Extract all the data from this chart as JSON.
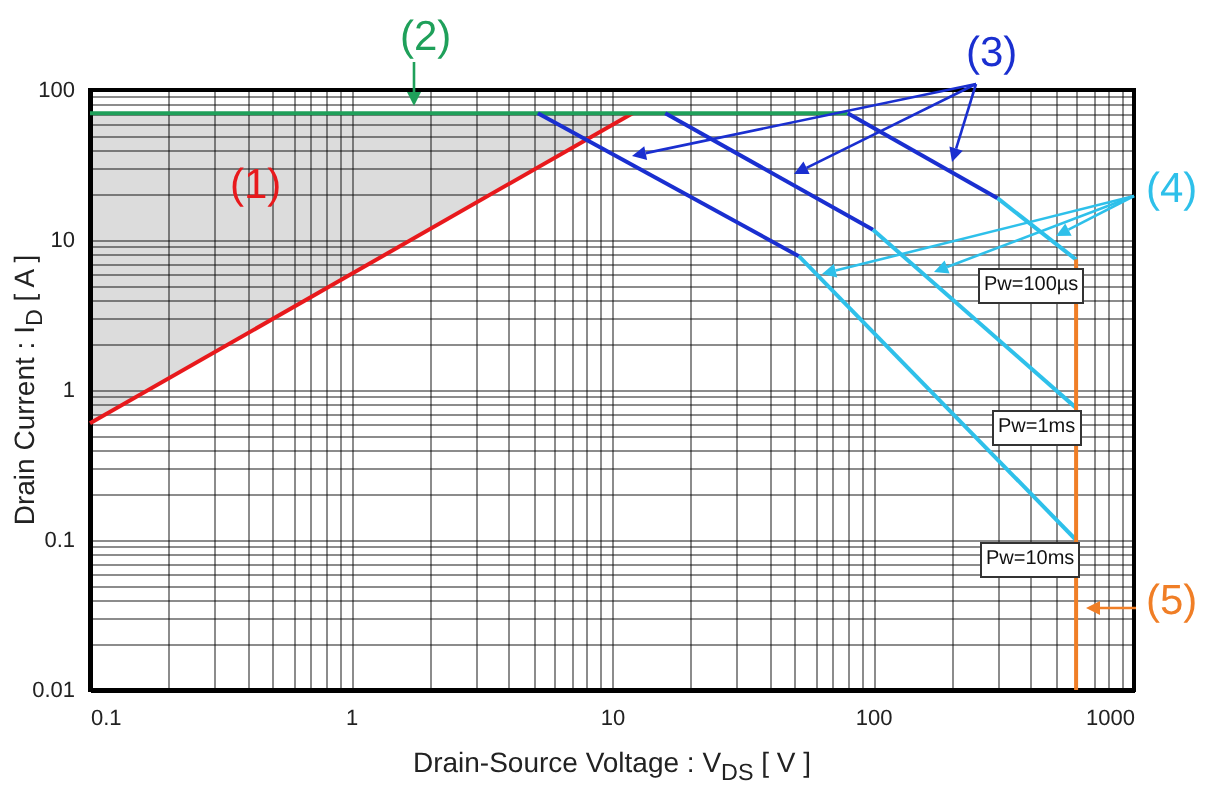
{
  "chart_data": {
    "type": "line",
    "xlabel": "Drain-Source  Voltage : V$_{DS}$ [ V ]",
    "ylabel": "Drain  Current : I$_{D}$ [ A ]",
    "log": "xy",
    "grid": true,
    "marker": "none",
    "line_style": "solid",
    "xlim": [
      0.1,
      1000
    ],
    "ylim": [
      0.01,
      100
    ],
    "xticks": [
      0.1,
      {
        "value": 0.2,
        "label": null
      },
      {
        "value": 0.3,
        "label": null
      },
      {
        "value": 0.4,
        "label": null
      },
      {
        "value": 0.5,
        "label": null
      },
      {
        "value": 0.6,
        "label": null
      },
      {
        "value": 0.7,
        "label": null
      },
      {
        "value": 0.8,
        "label": null
      },
      {
        "value": 0.9,
        "label": null
      },
      1,
      {
        "value": 2,
        "label": null
      },
      {
        "value": 3,
        "label": null
      },
      {
        "value": 4,
        "label": null
      },
      {
        "value": 5,
        "label": null
      },
      {
        "value": 6,
        "label": null
      },
      {
        "value": 7,
        "label": null
      },
      {
        "value": 8,
        "label": null
      },
      {
        "value": 9,
        "label": null
      },
      10,
      {
        "value": 20,
        "label": null
      },
      {
        "value": 30,
        "label": null
      },
      {
        "value": 40,
        "label": null
      },
      {
        "value": 50,
        "label": null
      },
      {
        "value": 60,
        "label": null
      },
      {
        "value": 70,
        "label": null
      },
      {
        "value": 80,
        "label": null
      },
      {
        "value": 90,
        "label": null
      },
      100,
      {
        "value": 200,
        "label": null
      },
      {
        "value": 300,
        "label": null
      },
      {
        "value": 400,
        "label": null
      },
      {
        "value": 500,
        "label": null
      },
      {
        "value": 600,
        "label": null
      },
      {
        "value": 700,
        "label": null
      },
      {
        "value": 800,
        "label": null
      },
      {
        "value": 900,
        "label": null
      },
      1000
    ],
    "yticks": [
      0.01,
      {
        "value": 0.02,
        "label": null
      },
      {
        "value": 0.03,
        "label": null
      },
      {
        "value": 0.04,
        "label": null
      },
      {
        "value": 0.05,
        "label": null
      },
      {
        "value": 0.06,
        "label": null
      },
      {
        "value": 0.07,
        "label": null
      },
      {
        "value": 0.08,
        "label": null
      },
      {
        "value": 0.09,
        "label": null
      },
      0.1,
      {
        "value": 0.2,
        "label": null
      },
      {
        "value": 0.3,
        "label": null
      },
      {
        "value": 0.4,
        "label": null
      },
      {
        "value": 0.5,
        "label": null
      },
      {
        "value": 0.6,
        "label": null
      },
      {
        "value": 0.7,
        "label": null
      },
      {
        "value": 0.8,
        "label": null
      },
      {
        "value": 0.9,
        "label": null
      },
      1,
      {
        "value": 2,
        "label": null
      },
      {
        "value": 3,
        "label": null
      },
      {
        "value": 4,
        "label": null
      },
      {
        "value": 5,
        "label": null
      },
      {
        "value": 6,
        "label": null
      },
      {
        "value": 7,
        "label": null
      },
      {
        "value": 8,
        "label": null
      },
      {
        "value": 9,
        "label": null
      },
      10,
      {
        "value": 20,
        "label": null
      },
      {
        "value": 30,
        "label": null
      },
      {
        "value": 40,
        "label": null
      },
      {
        "value": 50,
        "label": null
      },
      {
        "value": 60,
        "label": null
      },
      {
        "value": 70,
        "label": null
      },
      {
        "value": 80,
        "label": null
      },
      {
        "value": 90,
        "label": null
      },
      100
    ],
    "series": [
      {
        "color": "#e8191c",
        "x": [
          0.1,
          12
        ],
        "values": [
          0.6,
          70
        ]
      },
      {
        "color": "#1fa05a",
        "x": [
          0.1,
          80
        ],
        "values": [
          70,
          70
        ]
      },
      {
        "color": "#1a2fd0",
        "x": [
          5.2,
          52
        ],
        "values": [
          70,
          7.8
        ]
      },
      {
        "color": "#2ec0ea",
        "x": [
          52,
          600
        ],
        "values": [
          7.8,
          0.1
        ]
      },
      {
        "color": "#1a2fd0",
        "x": [
          16,
          100
        ],
        "values": [
          70,
          11.7
        ]
      },
      {
        "color": "#2ec0ea",
        "x": [
          100,
          600
        ],
        "values": [
          11.7,
          0.76
        ]
      },
      {
        "color": "#1a2fd0",
        "x": [
          80,
          300
        ],
        "values": [
          70,
          19
        ]
      },
      {
        "color": "#2ec0ea",
        "x": [
          300,
          600
        ],
        "values": [
          19,
          7.4
        ]
      },
      {
        "color": "#f07e26",
        "x": [
          600,
          600
        ],
        "values": [
          7.4,
          0.01
        ]
      }
    ],
    "annotations": [
      "(1)",
      "(2)",
      "(3)",
      "(4)",
      "(5)",
      "Pw=100µs",
      "Pw=1ms",
      "Pw=10ms"
    ]
  }
}
